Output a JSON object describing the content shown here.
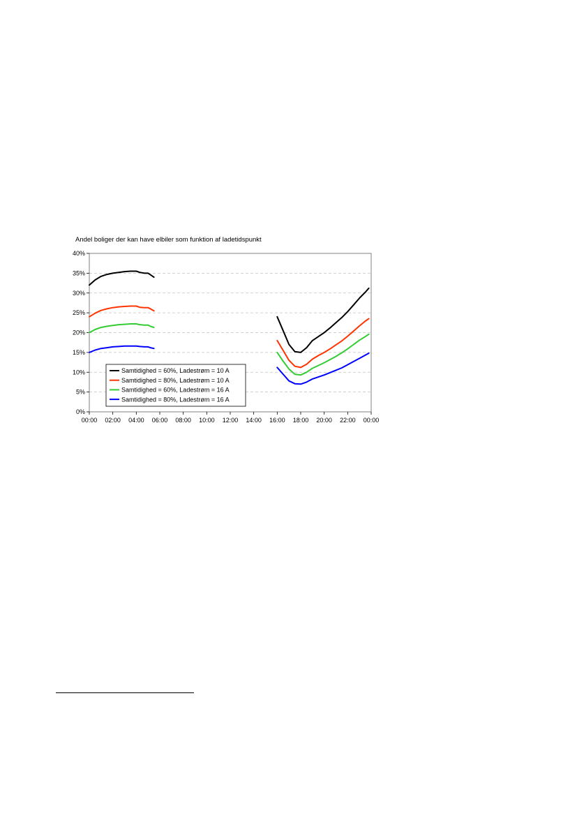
{
  "chart_data": {
    "type": "line",
    "title": "Andel boliger der kan have elbiler som funktion af ladetidspunkt",
    "xlabel": "",
    "ylabel": "",
    "x_ticks": [
      "00:00",
      "02:00",
      "04:00",
      "06:00",
      "08:00",
      "10:00",
      "12:00",
      "14:00",
      "16:00",
      "18:00",
      "20:00",
      "22:00",
      "00:00"
    ],
    "y_ticks": [
      "0%",
      "5%",
      "10%",
      "15%",
      "20%",
      "25%",
      "30%",
      "35%",
      "40%"
    ],
    "xlim": [
      0,
      24
    ],
    "ylim": [
      0,
      40
    ],
    "grid": "horizontal dashed",
    "legend_position": "bottom-left",
    "series": [
      {
        "name": "Samtidighed = 60%, Ladestrøm = 10 A",
        "color": "#000000",
        "segments": [
          [
            [
              0.0,
              32.0
            ],
            [
              0.5,
              33.3
            ],
            [
              1.0,
              34.2
            ],
            [
              1.5,
              34.7
            ],
            [
              2.0,
              35.0
            ],
            [
              2.5,
              35.2
            ],
            [
              3.0,
              35.4
            ],
            [
              3.5,
              35.5
            ],
            [
              4.0,
              35.5
            ],
            [
              4.3,
              35.2
            ],
            [
              4.7,
              35.0
            ],
            [
              5.0,
              35.0
            ],
            [
              5.2,
              34.6
            ],
            [
              5.5,
              34.0
            ]
          ],
          [
            [
              16.0,
              24.0
            ],
            [
              16.5,
              20.5
            ],
            [
              17.0,
              17.0
            ],
            [
              17.5,
              15.2
            ],
            [
              18.0,
              15.0
            ],
            [
              18.5,
              16.2
            ],
            [
              19.0,
              18.0
            ],
            [
              19.5,
              19.0
            ],
            [
              20.0,
              20.0
            ],
            [
              20.5,
              21.2
            ],
            [
              21.0,
              22.5
            ],
            [
              21.5,
              23.8
            ],
            [
              22.0,
              25.3
            ],
            [
              22.5,
              27.0
            ],
            [
              23.0,
              28.7
            ],
            [
              23.5,
              30.2
            ],
            [
              23.8,
              31.2
            ]
          ]
        ]
      },
      {
        "name": "Samtidighed = 80%, Ladestrøm = 10 A",
        "color": "#ff3300",
        "segments": [
          [
            [
              0.0,
              24.0
            ],
            [
              0.5,
              24.9
            ],
            [
              1.0,
              25.6
            ],
            [
              1.5,
              26.0
            ],
            [
              2.0,
              26.3
            ],
            [
              2.5,
              26.5
            ],
            [
              3.0,
              26.6
            ],
            [
              3.5,
              26.7
            ],
            [
              4.0,
              26.7
            ],
            [
              4.3,
              26.4
            ],
            [
              4.7,
              26.3
            ],
            [
              5.0,
              26.3
            ],
            [
              5.2,
              26.0
            ],
            [
              5.5,
              25.5
            ]
          ],
          [
            [
              16.0,
              18.0
            ],
            [
              16.5,
              15.5
            ],
            [
              17.0,
              13.0
            ],
            [
              17.5,
              11.5
            ],
            [
              18.0,
              11.2
            ],
            [
              18.5,
              12.0
            ],
            [
              19.0,
              13.3
            ],
            [
              19.5,
              14.2
            ],
            [
              20.0,
              15.0
            ],
            [
              20.5,
              15.9
            ],
            [
              21.0,
              16.9
            ],
            [
              21.5,
              17.9
            ],
            [
              22.0,
              19.1
            ],
            [
              22.5,
              20.4
            ],
            [
              23.0,
              21.7
            ],
            [
              23.5,
              22.9
            ],
            [
              23.8,
              23.5
            ]
          ]
        ]
      },
      {
        "name": "Samtidighed = 60%, Ladestrøm = 16 A",
        "color": "#33cc33",
        "segments": [
          [
            [
              0.0,
              20.0
            ],
            [
              0.5,
              20.8
            ],
            [
              1.0,
              21.3
            ],
            [
              1.5,
              21.6
            ],
            [
              2.0,
              21.8
            ],
            [
              2.5,
              22.0
            ],
            [
              3.0,
              22.1
            ],
            [
              3.5,
              22.2
            ],
            [
              4.0,
              22.2
            ],
            [
              4.3,
              22.0
            ],
            [
              4.7,
              21.9
            ],
            [
              5.0,
              21.9
            ],
            [
              5.2,
              21.6
            ],
            [
              5.5,
              21.3
            ]
          ],
          [
            [
              16.0,
              15.0
            ],
            [
              16.5,
              12.8
            ],
            [
              17.0,
              10.8
            ],
            [
              17.5,
              9.5
            ],
            [
              18.0,
              9.3
            ],
            [
              18.5,
              10.0
            ],
            [
              19.0,
              11.0
            ],
            [
              19.5,
              11.7
            ],
            [
              20.0,
              12.4
            ],
            [
              20.5,
              13.2
            ],
            [
              21.0,
              14.0
            ],
            [
              21.5,
              14.9
            ],
            [
              22.0,
              15.9
            ],
            [
              22.5,
              17.0
            ],
            [
              23.0,
              18.1
            ],
            [
              23.5,
              19.0
            ],
            [
              23.8,
              19.6
            ]
          ]
        ]
      },
      {
        "name": "Samtidighed = 80%, Ladestrøm = 16 A",
        "color": "#0000ff",
        "segments": [
          [
            [
              0.0,
              15.0
            ],
            [
              0.5,
              15.6
            ],
            [
              1.0,
              16.0
            ],
            [
              1.5,
              16.2
            ],
            [
              2.0,
              16.4
            ],
            [
              2.5,
              16.5
            ],
            [
              3.0,
              16.6
            ],
            [
              3.5,
              16.6
            ],
            [
              4.0,
              16.6
            ],
            [
              4.3,
              16.5
            ],
            [
              4.7,
              16.4
            ],
            [
              5.0,
              16.4
            ],
            [
              5.2,
              16.2
            ],
            [
              5.5,
              16.0
            ]
          ],
          [
            [
              16.0,
              11.2
            ],
            [
              16.5,
              9.5
            ],
            [
              17.0,
              7.8
            ],
            [
              17.5,
              7.1
            ],
            [
              18.0,
              7.0
            ],
            [
              18.5,
              7.5
            ],
            [
              19.0,
              8.3
            ],
            [
              19.5,
              8.8
            ],
            [
              20.0,
              9.3
            ],
            [
              20.5,
              9.9
            ],
            [
              21.0,
              10.5
            ],
            [
              21.5,
              11.1
            ],
            [
              22.0,
              11.9
            ],
            [
              22.5,
              12.7
            ],
            [
              23.0,
              13.5
            ],
            [
              23.5,
              14.3
            ],
            [
              23.8,
              14.8
            ]
          ]
        ]
      }
    ]
  }
}
